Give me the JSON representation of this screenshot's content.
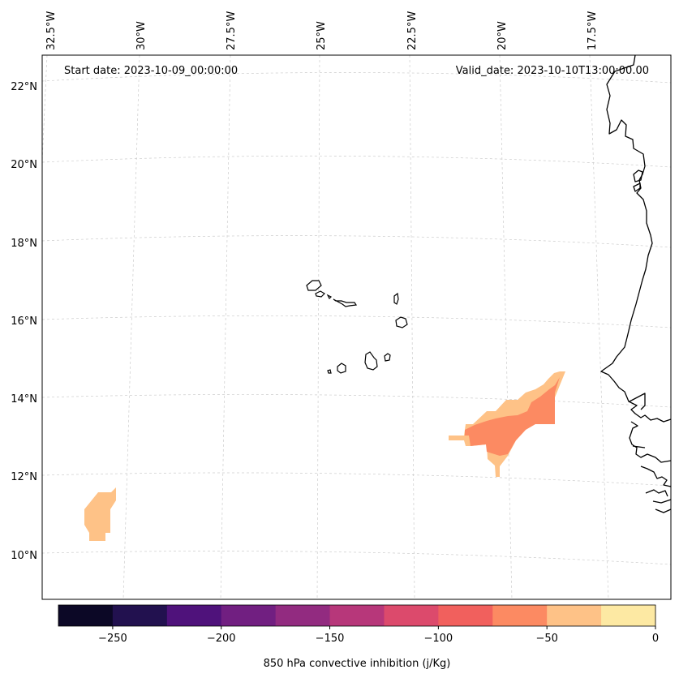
{
  "header": {
    "start_date": "Start date: 2023-10-09_00:00:00",
    "valid_date": "Valid_date: 2023-10-10T13:00:00.00"
  },
  "axes": {
    "lon_labels": [
      "32.5°W",
      "30°W",
      "27.5°W",
      "25°W",
      "22.5°W",
      "20°W",
      "17.5°W"
    ],
    "lat_labels": [
      "22°N",
      "20°N",
      "18°N",
      "16°N",
      "14°N",
      "12°N",
      "10°N"
    ]
  },
  "colorbar": {
    "label": "850 hPa convective inhibition (j/Kg)",
    "ticks": [
      "−250",
      "−200",
      "−150",
      "−100",
      "−50",
      "0"
    ],
    "range": [
      -275,
      0
    ],
    "colors": [
      "#0c0826",
      "#22114f",
      "#4f127b",
      "#711f81",
      "#922b80",
      "#b7377a",
      "#dc4a6c",
      "#f1605d",
      "#fc8a62",
      "#fec287",
      "#fde9a3"
    ]
  },
  "chart_data": {
    "type": "heatmap",
    "title": "",
    "variable": "850 hPa convective inhibition (j/Kg)",
    "start_date": "2023-10-09_00:00:00",
    "valid_date": "2023-10-10T13:00:00.00",
    "projection": "lambert-conformal",
    "lon_range": [
      -33,
      -15.5
    ],
    "lat_range": [
      9,
      22.8
    ],
    "grid": true,
    "colorbar_placement": "bottom",
    "regions": [
      {
        "name": "west-patch",
        "value_range": [
          -50,
          -25
        ],
        "approx_center": {
          "lon": -31.3,
          "lat": 11.0
        }
      },
      {
        "name": "east-patch-outer",
        "value_range": [
          -50,
          -25
        ],
        "approx_center": {
          "lon": -20.0,
          "lat": 13.4
        }
      },
      {
        "name": "east-patch-core",
        "value_range": [
          -75,
          -50
        ],
        "approx_center": {
          "lon": -19.7,
          "lat": 13.2
        }
      }
    ]
  }
}
